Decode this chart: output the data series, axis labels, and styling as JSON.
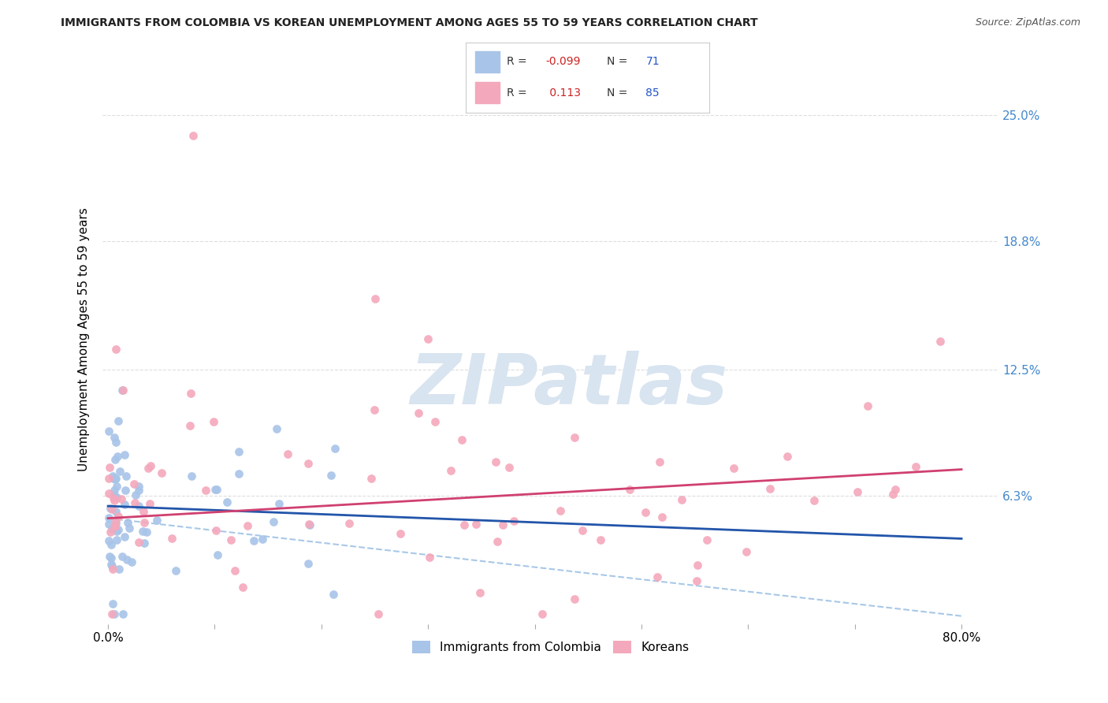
{
  "title": "IMMIGRANTS FROM COLOMBIA VS KOREAN UNEMPLOYMENT AMONG AGES 55 TO 59 YEARS CORRELATION CHART",
  "source": "Source: ZipAtlas.com",
  "ylabel": "Unemployment Among Ages 55 to 59 years",
  "series1_label": "Immigrants from Colombia",
  "series1_color": "#a8c4e8",
  "series1_line_color": "#2255aa",
  "series1_R": -0.099,
  "series1_N": 71,
  "series2_label": "Koreans",
  "series2_color": "#f4a8bc",
  "series2_line_color": "#d04070",
  "series2_R": 0.113,
  "series2_N": 85,
  "dashed_color": "#a8c8e8",
  "ylim": [
    0.0,
    0.28
  ],
  "xlim": [
    -0.005,
    0.835
  ],
  "watermark": "ZIPatlas",
  "watermark_color": "#d8e4f0",
  "background_color": "#ffffff",
  "grid_color": "#dddddd",
  "right_tick_color": "#4488cc",
  "trend1_intercept": 0.058,
  "trend1_slope": -0.02,
  "trend2_intercept": 0.052,
  "trend2_slope": 0.03,
  "dashed_intercept": 0.052,
  "dashed_slope": -0.06
}
